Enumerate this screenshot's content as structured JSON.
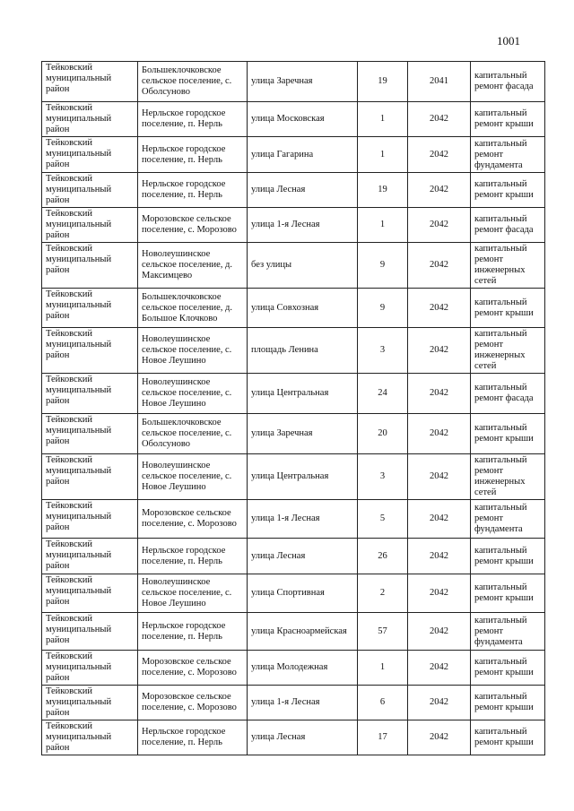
{
  "header": {
    "page_number": "1001"
  },
  "table": {
    "rows": [
      [
        "Тейковский муниципальный район",
        "Большеклочковское сельское поселение, с. Оболсуново",
        "улица Заречная",
        19,
        2041,
        "капитальный ремонт фасада"
      ],
      [
        "Тейковский муниципальный район",
        "Нерльское городское поселение, п. Нерль",
        "улица Московская",
        1,
        2042,
        "капитальный ремонт крыши"
      ],
      [
        "Тейковский муниципальный район",
        "Нерльское городское поселение, п. Нерль",
        "улица Гагарина",
        1,
        2042,
        "капитальный ремонт фундамента"
      ],
      [
        "Тейковский муниципальный район",
        "Нерльское городское поселение, п. Нерль",
        "улица Лесная",
        19,
        2042,
        "капитальный ремонт крыши"
      ],
      [
        "Тейковский муниципальный район",
        "Морозовское сельское поселение, с. Морозово",
        "улица 1-я Лесная",
        1,
        2042,
        "капитальный ремонт фасада"
      ],
      [
        "Тейковский муниципальный район",
        "Новолеушинское сельское поселение, д. Максимцево",
        "без улицы",
        9,
        2042,
        "капитальный ремонт инженерных сетей"
      ],
      [
        "Тейковский муниципальный район",
        "Большеклочковское сельское поселение, д. Большое Клочково",
        "улица Совхозная",
        9,
        2042,
        "капитальный ремонт крыши"
      ],
      [
        "Тейковский муниципальный район",
        "Новолеушинское сельское поселение, с. Новое Леушино",
        "площадь Ленина",
        3,
        2042,
        "капитальный ремонт инженерных сетей"
      ],
      [
        "Тейковский муниципальный район",
        "Новолеушинское сельское поселение, с. Новое Леушино",
        "улица Центральная",
        24,
        2042,
        "капитальный ремонт фасада"
      ],
      [
        "Тейковский муниципальный район",
        "Большеклочковское сельское поселение, с. Оболсуново",
        "улица Заречная",
        20,
        2042,
        "капитальный ремонт крыши"
      ],
      [
        "Тейковский муниципальный район",
        "Новолеушинское сельское поселение, с. Новое Леушино",
        "улица Центральная",
        3,
        2042,
        "капитальный ремонт инженерных сетей"
      ],
      [
        "Тейковский муниципальный район",
        "Морозовское сельское поселение, с. Морозово",
        "улица 1-я Лесная",
        5,
        2042,
        "капитальный ремонт фундамента"
      ],
      [
        "Тейковский муниципальный район",
        "Нерльское городское поселение, п. Нерль",
        "улица Лесная",
        26,
        2042,
        "капитальный ремонт крыши"
      ],
      [
        "Тейковский муниципальный район",
        "Новолеушинское сельское поселение, с. Новое Леушино",
        "улица Спортивная",
        2,
        2042,
        "капитальный ремонт крыши"
      ],
      [
        "Тейковский муниципальный район",
        "Нерльское городское поселение, п. Нерль",
        "улица Красноармейская",
        57,
        2042,
        "капитальный ремонт фундамента"
      ],
      [
        "Тейковский муниципальный район",
        "Морозовское сельское поселение, с. Морозово",
        "улица Молодежная",
        1,
        2042,
        "капитальный ремонт крыши"
      ],
      [
        "Тейковский муниципальный район",
        "Морозовское сельское поселение, с. Морозово",
        "улица 1-я Лесная",
        6,
        2042,
        "капитальный ремонт крыши"
      ],
      [
        "Тейковский муниципальный район",
        "Нерльское городское поселение, п. Нерль",
        "улица Лесная",
        17,
        2042,
        "капитальный ремонт крыши"
      ]
    ]
  }
}
